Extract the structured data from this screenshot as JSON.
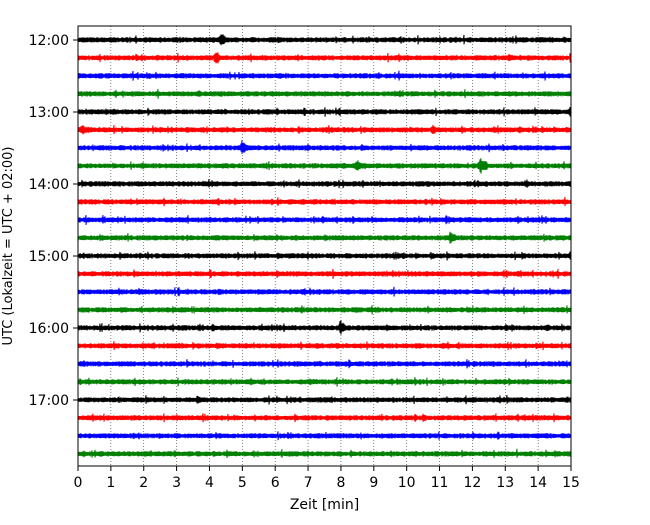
{
  "chart_data": {
    "type": "line",
    "title": "",
    "xlabel": "Zeit  [min]",
    "ylabel": "UTC (Lokalzeit = UTC + 02:00)",
    "xlim": [
      0,
      15
    ],
    "x_ticks": [
      "0",
      "1",
      "2",
      "3",
      "4",
      "5",
      "6",
      "7",
      "8",
      "9",
      "10",
      "11",
      "12",
      "13",
      "14",
      "15"
    ],
    "y_tick_labels": [
      "12:00",
      "13:00",
      "14:00",
      "15:00",
      "16:00",
      "17:00"
    ],
    "grid": "vertical dotted lines at each minute",
    "legend": "none",
    "trace_colors": [
      "#000000",
      "#ff0000",
      "#0000ff",
      "#008000"
    ],
    "series": [
      {
        "start": "12:00",
        "color": "#000000",
        "events": [
          [
            4.35,
            1.0
          ],
          [
            5.3,
            0.35
          ],
          [
            3.0,
            0.35
          ],
          [
            8.1,
            0.3
          ],
          [
            9.9,
            0.3
          ],
          [
            11.1,
            0.3
          ],
          [
            12.3,
            0.3
          ]
        ]
      },
      {
        "start": "12:15",
        "color": "#ff0000",
        "events": [
          [
            4.2,
            0.95
          ],
          [
            2.4,
            0.35
          ],
          [
            4.9,
            0.3
          ],
          [
            8.4,
            0.3
          ],
          [
            13.1,
            0.45
          ]
        ]
      },
      {
        "start": "12:30",
        "color": "#0000ff",
        "events": [
          [
            0.35,
            0.3
          ],
          [
            3.0,
            0.4
          ],
          [
            7.0,
            0.3
          ],
          [
            8.6,
            0.3
          ],
          [
            11.4,
            0.25
          ]
        ]
      },
      {
        "start": "12:45",
        "color": "#008000",
        "events": [
          [
            3.7,
            0.4
          ],
          [
            9.8,
            0.4
          ],
          [
            13.1,
            0.3
          ],
          [
            14.4,
            0.25
          ]
        ]
      },
      {
        "start": "13:00",
        "color": "#000000",
        "events": [
          [
            1.0,
            0.3
          ],
          [
            8.3,
            0.3
          ],
          [
            14.95,
            0.6
          ]
        ]
      },
      {
        "start": "13:15",
        "color": "#ff0000",
        "events": [
          [
            0.1,
            0.7
          ],
          [
            0.25,
            0.5
          ],
          [
            7.9,
            0.3
          ],
          [
            10.8,
            0.55
          ],
          [
            13.0,
            0.25
          ]
        ]
      },
      {
        "start": "13:30",
        "color": "#0000ff",
        "events": [
          [
            5.0,
            0.9
          ],
          [
            1.3,
            0.25
          ],
          [
            3.1,
            0.25
          ],
          [
            10.4,
            0.3
          ]
        ]
      },
      {
        "start": "13:45",
        "color": "#008000",
        "events": [
          [
            8.5,
            0.75
          ],
          [
            8.7,
            0.4
          ],
          [
            12.25,
            1.0
          ],
          [
            12.4,
            0.6
          ],
          [
            1.1,
            0.25
          ]
        ]
      },
      {
        "start": "14:00",
        "color": "#000000",
        "events": [
          [
            4.0,
            0.4
          ],
          [
            10.6,
            0.35
          ],
          [
            13.6,
            0.4
          ],
          [
            2.1,
            0.25
          ]
        ]
      },
      {
        "start": "14:15",
        "color": "#ff0000",
        "events": [
          [
            3.8,
            0.35
          ],
          [
            6.9,
            0.3
          ],
          [
            10.2,
            0.3
          ],
          [
            12.6,
            0.3
          ]
        ]
      },
      {
        "start": "14:30",
        "color": "#0000ff",
        "events": [
          [
            2.7,
            0.3
          ],
          [
            6.0,
            0.3
          ],
          [
            9.0,
            0.3
          ],
          [
            12.4,
            0.3
          ]
        ]
      },
      {
        "start": "14:45",
        "color": "#008000",
        "events": [
          [
            11.35,
            0.85
          ],
          [
            7.5,
            0.45
          ],
          [
            14.0,
            0.4
          ],
          [
            3.3,
            0.25
          ]
        ]
      },
      {
        "start": "15:00",
        "color": "#000000",
        "events": [
          [
            10.75,
            0.5
          ],
          [
            7.0,
            0.4
          ],
          [
            12.5,
            0.3
          ],
          [
            4.6,
            0.3
          ]
        ]
      },
      {
        "start": "15:15",
        "color": "#ff0000",
        "events": [
          [
            3.3,
            0.35
          ],
          [
            13.4,
            0.4
          ],
          [
            8.0,
            0.3
          ],
          [
            5.8,
            0.25
          ]
        ]
      },
      {
        "start": "15:30",
        "color": "#0000ff",
        "events": [
          [
            1.4,
            0.3
          ],
          [
            13.6,
            0.35
          ],
          [
            14.9,
            0.3
          ],
          [
            5.6,
            0.25
          ]
        ]
      },
      {
        "start": "15:45",
        "color": "#008000",
        "events": [
          [
            0.8,
            0.3
          ],
          [
            6.2,
            0.3
          ],
          [
            10.0,
            0.3
          ]
        ]
      },
      {
        "start": "16:00",
        "color": "#000000",
        "events": [
          [
            8.0,
            0.95
          ],
          [
            4.1,
            0.55
          ],
          [
            14.3,
            0.45
          ],
          [
            6.9,
            0.3
          ]
        ]
      },
      {
        "start": "16:15",
        "color": "#ff0000",
        "events": [
          [
            3.9,
            0.3
          ],
          [
            11.2,
            0.3
          ],
          [
            13.4,
            0.3
          ]
        ]
      },
      {
        "start": "16:30",
        "color": "#0000ff",
        "events": [
          [
            1.6,
            0.3
          ],
          [
            6.2,
            0.3
          ],
          [
            12.4,
            0.3
          ]
        ]
      },
      {
        "start": "16:45",
        "color": "#008000",
        "events": [
          [
            2.3,
            0.3
          ],
          [
            7.1,
            0.3
          ],
          [
            11.9,
            0.3
          ]
        ]
      },
      {
        "start": "17:00",
        "color": "#000000",
        "events": [
          [
            3.65,
            0.6
          ],
          [
            12.0,
            0.4
          ],
          [
            14.9,
            0.4
          ],
          [
            8.6,
            0.25
          ]
        ]
      },
      {
        "start": "17:15",
        "color": "#ff0000",
        "events": [
          [
            10.5,
            0.45
          ],
          [
            1.3,
            0.3
          ],
          [
            9.1,
            0.3
          ]
        ]
      },
      {
        "start": "17:30",
        "color": "#0000ff",
        "events": [
          [
            13.3,
            0.3
          ],
          [
            10.8,
            0.25
          ],
          [
            6.3,
            0.25
          ]
        ]
      },
      {
        "start": "17:45",
        "color": "#008000",
        "events": [
          [
            5.8,
            0.25
          ],
          [
            11.6,
            0.25
          ]
        ]
      }
    ]
  }
}
